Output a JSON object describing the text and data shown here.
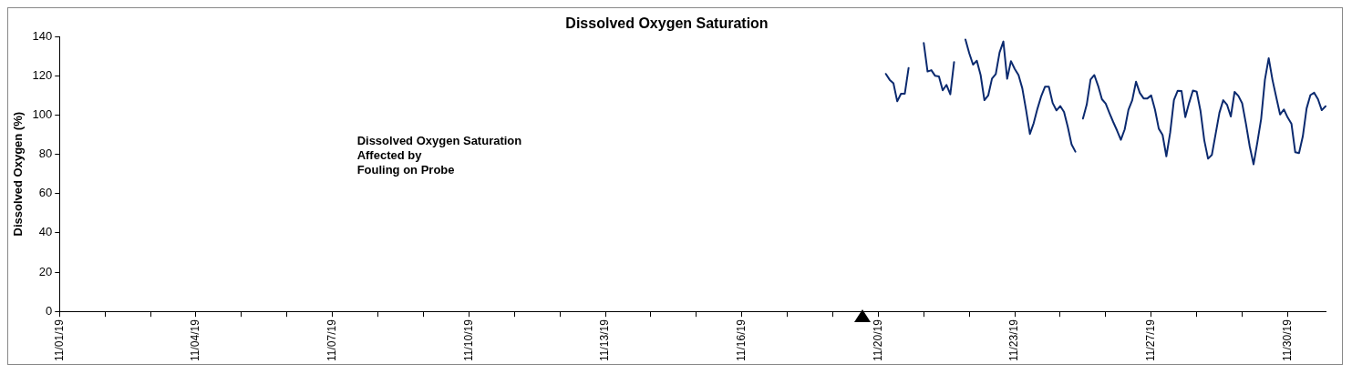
{
  "chart_data": {
    "type": "line",
    "title": "Dissolved Oxygen Saturation",
    "ylabel": "Dissolved Oxygen (%)",
    "annotations": [
      "Dissolved Oxygen Saturation\nAffected by\nFouling on Probe"
    ],
    "categories": [
      "11/01/19",
      null,
      null,
      null,
      null,
      null,
      null,
      null,
      null,
      null,
      null,
      null,
      null,
      null,
      null,
      null,
      null,
      null,
      null,
      null,
      null,
      null,
      null,
      null,
      null,
      null,
      null,
      null,
      null,
      null,
      null,
      null,
      null,
      null,
      null,
      null,
      "11/04/19",
      null,
      null,
      null,
      null,
      null,
      null,
      null,
      null,
      null,
      null,
      null,
      null,
      null,
      null,
      null,
      null,
      null,
      null,
      null,
      null,
      null,
      null,
      null,
      null,
      null,
      null,
      null,
      null,
      null,
      null,
      null,
      null,
      null,
      null,
      null,
      "11/07/19",
      null,
      null,
      null,
      null,
      null,
      null,
      null,
      null,
      null,
      null,
      null,
      null,
      null,
      null,
      null,
      null,
      null,
      null,
      null,
      null,
      null,
      null,
      null,
      null,
      null,
      null,
      null,
      null,
      null,
      null,
      null,
      null,
      null,
      null,
      null,
      "11/10/19",
      null,
      null,
      null,
      null,
      null,
      null,
      null,
      null,
      null,
      null,
      null,
      null,
      null,
      null,
      null,
      null,
      null,
      null,
      null,
      null,
      null,
      null,
      null,
      null,
      null,
      null,
      null,
      null,
      null,
      null,
      null,
      null,
      null,
      null,
      null,
      "11/13/19",
      null,
      null,
      null,
      null,
      null,
      null,
      null,
      null,
      null,
      null,
      null,
      null,
      null,
      null,
      null,
      null,
      null,
      null,
      null,
      null,
      null,
      null,
      null,
      null,
      null,
      null,
      null,
      null,
      null,
      null,
      null,
      null,
      null,
      null,
      null,
      "11/16/19",
      null,
      null,
      null,
      null,
      null,
      null,
      null,
      null,
      null,
      null,
      null,
      null,
      null,
      null,
      null,
      null,
      null,
      null,
      null,
      null,
      null,
      null,
      null,
      null,
      null,
      null,
      null,
      null,
      null,
      null,
      null,
      null,
      null,
      null,
      null,
      "11/20/19",
      null,
      null,
      null,
      null,
      null,
      null,
      null,
      null,
      null,
      null,
      null,
      null,
      null,
      null,
      null,
      null,
      null,
      null,
      null,
      null,
      null,
      null,
      null,
      null,
      null,
      null,
      null,
      null,
      null,
      null,
      null,
      null,
      null,
      null,
      null,
      "11/23/19",
      null,
      null,
      null,
      null,
      null,
      null,
      null,
      null,
      null,
      null,
      null,
      null,
      null,
      null,
      null,
      null,
      null,
      null,
      null,
      null,
      null,
      null,
      null,
      null,
      null,
      null,
      null,
      null,
      null,
      null,
      null,
      null,
      null,
      null,
      null,
      "11/27/19",
      null,
      null,
      null,
      null,
      null,
      null,
      null,
      null,
      null,
      null,
      null,
      null,
      null,
      null,
      null,
      null,
      null,
      null,
      null,
      null,
      null,
      null,
      null,
      null,
      null,
      null,
      null,
      null,
      null,
      null,
      null,
      null,
      null,
      null,
      null,
      "11/30/19",
      null,
      null,
      null,
      null,
      null,
      null,
      null,
      null,
      null,
      null
    ],
    "ylim": [
      0,
      140
    ],
    "yticks": [
      0,
      20,
      40,
      60,
      80,
      100,
      120,
      140
    ],
    "grid": false,
    "legend": false,
    "marker": "none",
    "line_style": "solid",
    "series": [
      {
        "color": "#0b2a6f",
        "values": [
          null,
          null,
          null,
          null,
          null,
          null,
          null,
          null,
          null,
          null,
          null,
          null,
          null,
          null,
          null,
          null,
          null,
          null,
          null,
          null,
          null,
          null,
          null,
          null,
          null,
          null,
          null,
          null,
          null,
          null,
          null,
          null,
          null,
          null,
          null,
          null,
          null,
          null,
          null,
          null,
          null,
          null,
          null,
          null,
          null,
          null,
          null,
          null,
          null,
          null,
          null,
          null,
          null,
          null,
          null,
          null,
          null,
          null,
          null,
          null,
          null,
          null,
          null,
          null,
          null,
          null,
          null,
          null,
          null,
          null,
          null,
          null,
          null,
          null,
          null,
          null,
          null,
          null,
          null,
          null,
          null,
          null,
          null,
          null,
          null,
          null,
          null,
          null,
          null,
          null,
          null,
          null,
          null,
          null,
          null,
          null,
          null,
          null,
          null,
          null,
          null,
          null,
          null,
          null,
          null,
          null,
          null,
          null,
          null,
          null,
          null,
          null,
          null,
          null,
          null,
          null,
          null,
          null,
          null,
          null,
          null,
          null,
          null,
          null,
          null,
          null,
          null,
          null,
          null,
          null,
          null,
          null,
          null,
          null,
          null,
          null,
          null,
          null,
          null,
          null,
          null,
          null,
          null,
          null,
          null,
          null,
          null,
          null,
          null,
          null,
          null,
          null,
          null,
          null,
          null,
          null,
          null,
          null,
          null,
          null,
          null,
          null,
          null,
          null,
          null,
          null,
          null,
          null,
          null,
          null,
          null,
          null,
          null,
          null,
          null,
          null,
          null,
          null,
          null,
          null,
          null,
          null,
          null,
          null,
          null,
          null,
          null,
          null,
          null,
          null,
          null,
          null,
          null,
          null,
          null,
          null,
          null,
          null,
          null,
          null,
          null,
          null,
          null,
          null,
          null,
          null,
          null,
          null,
          null,
          null,
          null,
          null,
          null,
          null,
          null,
          null,
          null,
          null,
          121,
          118,
          116.2,
          107,
          110.9,
          110.9,
          124,
          null,
          null,
          null,
          136.7,
          122.2,
          122.9,
          120,
          119.7,
          112.6,
          115.4,
          110.6,
          127,
          null,
          null,
          138.5,
          131.5,
          125.7,
          127.7,
          120.4,
          107.6,
          110,
          118.6,
          120.9,
          131.9,
          137.5,
          118.5,
          127.5,
          123.5,
          120.4,
          113.6,
          102.5,
          90.4,
          95.9,
          103.3,
          109.7,
          114.5,
          114.5,
          106.2,
          102.4,
          104.6,
          101.6,
          94,
          85,
          81.4,
          null,
          98.2,
          105.4,
          118.1,
          120.4,
          114.9,
          108.1,
          105.8,
          101,
          96.4,
          92.1,
          87.4,
          92.7,
          102.7,
          107.6,
          117,
          111.3,
          108.5,
          108.5,
          110,
          102.8,
          93.1,
          89.9,
          79,
          91,
          107.7,
          112.4,
          112.3,
          99,
          106.2,
          112.5,
          111.9,
          102.2,
          87.2,
          77.8,
          79.7,
          90.4,
          101.2,
          107.6,
          105.3,
          99.3,
          111.8,
          109.8,
          106,
          95.5,
          84,
          74.9,
          86,
          98,
          118,
          129,
          117.9,
          109,
          100.3,
          102.9,
          98.8,
          95.6,
          81.1,
          80.6,
          89.2,
          103.4,
          110.2,
          111.4,
          108.1,
          102.5,
          104.5
        ]
      }
    ]
  }
}
